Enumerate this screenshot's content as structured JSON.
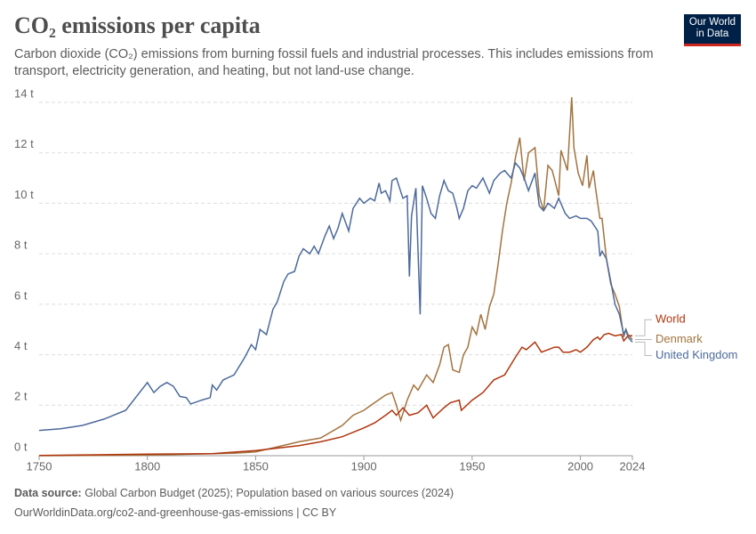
{
  "chart_data": {
    "type": "line",
    "title": "CO₂ emissions per capita",
    "subtitle": "Carbon dioxide (CO₂) emissions from burning fossil fuels and industrial processes. This includes emissions from transport, electricity generation, and heating, but not land-use change.",
    "logo_lines": [
      "Our World",
      "in Data"
    ],
    "source_label": "Data source:",
    "source": "Global Carbon Budget (2025); Population based on various sources (2024)",
    "footer_url": "OurWorldinData.org/co2-and-greenhouse-gas-emissions | CC BY",
    "xlim": [
      1750,
      2024
    ],
    "xticks": [
      1750,
      1800,
      1850,
      1900,
      1950,
      2000,
      2024
    ],
    "ylim": [
      0,
      14
    ],
    "yticks": [
      {
        "value": 0,
        "label": "0 t"
      },
      {
        "value": 2,
        "label": "2 t"
      },
      {
        "value": 4,
        "label": "4 t"
      },
      {
        "value": 6,
        "label": "6 t"
      },
      {
        "value": 8,
        "label": "8 t"
      },
      {
        "value": 10,
        "label": "10 t"
      },
      {
        "value": 12,
        "label": "12 t"
      },
      {
        "value": 14,
        "label": "14 t"
      }
    ],
    "grid": true,
    "series": [
      {
        "name": "Denmark",
        "color": "#a2743f",
        "x": [
          1750,
          1800,
          1840,
          1850,
          1860,
          1870,
          1880,
          1890,
          1895,
          1900,
          1905,
          1910,
          1913,
          1915,
          1917,
          1920,
          1923,
          1925,
          1929,
          1932,
          1935,
          1937,
          1939,
          1941,
          1944,
          1946,
          1948,
          1950,
          1952,
          1954,
          1956,
          1958,
          1960,
          1962,
          1964,
          1966,
          1968,
          1970,
          1972,
          1974,
          1976,
          1979,
          1981,
          1983,
          1985,
          1987,
          1990,
          1991,
          1994,
          1996,
          1997,
          1999,
          2001,
          2003,
          2004,
          2006,
          2007,
          2009,
          2010,
          2012,
          2014,
          2016,
          2018,
          2020,
          2021,
          2022,
          2024
        ],
        "values": [
          0,
          0.02,
          0.1,
          0.15,
          0.35,
          0.55,
          0.7,
          1.2,
          1.6,
          1.8,
          2.1,
          2.4,
          2.5,
          2.0,
          1.4,
          2.2,
          2.8,
          2.6,
          3.2,
          2.9,
          3.6,
          4.3,
          4.4,
          3.4,
          3.3,
          4.0,
          4.3,
          5.1,
          4.8,
          5.6,
          5.0,
          5.9,
          6.4,
          7.6,
          8.9,
          10.0,
          10.8,
          11.8,
          12.6,
          10.9,
          12.0,
          12.2,
          10.3,
          9.7,
          11.5,
          11.3,
          10.3,
          12.1,
          11.3,
          14.2,
          12.2,
          11.2,
          10.7,
          11.9,
          10.6,
          11.3,
          10.6,
          9.4,
          9.4,
          7.8,
          6.8,
          6.4,
          5.9,
          4.7,
          5.0,
          4.8,
          4.6
        ]
      },
      {
        "name": "World",
        "color": "#b0360f",
        "x": [
          1750,
          1800,
          1830,
          1850,
          1860,
          1870,
          1880,
          1890,
          1900,
          1905,
          1910,
          1913,
          1915,
          1918,
          1921,
          1925,
          1929,
          1932,
          1937,
          1940,
          1944,
          1945,
          1950,
          1955,
          1960,
          1965,
          1970,
          1973,
          1975,
          1979,
          1982,
          1985,
          1988,
          1990,
          1992,
          1995,
          1998,
          2000,
          2003,
          2006,
          2008,
          2009,
          2011,
          2013,
          2016,
          2019,
          2020,
          2022,
          2024
        ],
        "values": [
          0.01,
          0.06,
          0.08,
          0.2,
          0.3,
          0.4,
          0.55,
          0.75,
          1.1,
          1.3,
          1.6,
          1.8,
          1.6,
          1.9,
          1.6,
          1.7,
          2.0,
          1.5,
          1.9,
          2.1,
          2.2,
          1.8,
          2.2,
          2.5,
          3.0,
          3.2,
          3.9,
          4.3,
          4.2,
          4.5,
          4.1,
          4.2,
          4.3,
          4.3,
          4.1,
          4.1,
          4.2,
          4.1,
          4.3,
          4.6,
          4.7,
          4.6,
          4.8,
          4.85,
          4.75,
          4.8,
          4.55,
          4.75,
          4.75
        ]
      },
      {
        "name": "United Kingdom",
        "color": "#4c6a9c",
        "x": [
          1750,
          1760,
          1770,
          1780,
          1790,
          1800,
          1803,
          1806,
          1809,
          1812,
          1815,
          1818,
          1820,
          1825,
          1829,
          1830,
          1832,
          1835,
          1840,
          1845,
          1848,
          1850,
          1852,
          1855,
          1858,
          1860,
          1863,
          1865,
          1868,
          1870,
          1872,
          1875,
          1877,
          1879,
          1882,
          1884,
          1886,
          1888,
          1890,
          1893,
          1895,
          1898,
          1900,
          1903,
          1905,
          1907,
          1908,
          1910,
          1912,
          1913,
          1915,
          1918,
          1920,
          1921,
          1922,
          1924,
          1926,
          1927,
          1929,
          1931,
          1933,
          1935,
          1937,
          1939,
          1941,
          1943,
          1944,
          1946,
          1948,
          1950,
          1952,
          1955,
          1958,
          1960,
          1963,
          1965,
          1968,
          1970,
          1972,
          1974,
          1976,
          1979,
          1981,
          1983,
          1985,
          1988,
          1990,
          1993,
          1995,
          1998,
          2000,
          2003,
          2005,
          2008,
          2009,
          2010,
          2012,
          2014,
          2016,
          2018,
          2020,
          2021,
          2022,
          2024
        ],
        "values": [
          1.0,
          1.07,
          1.2,
          1.45,
          1.8,
          2.9,
          2.5,
          2.75,
          2.9,
          2.75,
          2.35,
          2.3,
          2.05,
          2.2,
          2.3,
          2.8,
          2.6,
          3.0,
          3.2,
          3.9,
          4.4,
          4.2,
          5.0,
          4.8,
          5.8,
          6.1,
          6.9,
          7.2,
          7.3,
          7.9,
          8.2,
          8.0,
          8.3,
          8.0,
          8.7,
          9.1,
          8.6,
          9.0,
          9.6,
          8.9,
          9.8,
          10.2,
          10.0,
          10.2,
          10.1,
          10.8,
          10.4,
          10.5,
          10.1,
          10.9,
          11.0,
          10.2,
          10.3,
          7.1,
          9.5,
          10.6,
          5.6,
          10.7,
          10.2,
          9.6,
          9.4,
          10.3,
          10.9,
          10.5,
          10.4,
          9.8,
          9.4,
          9.8,
          10.5,
          10.7,
          10.6,
          11.0,
          10.4,
          10.9,
          11.2,
          11.3,
          11.0,
          11.6,
          11.4,
          11.0,
          10.5,
          11.2,
          9.9,
          9.7,
          10.0,
          9.8,
          10.2,
          9.6,
          9.4,
          9.5,
          9.4,
          9.4,
          9.3,
          8.9,
          7.9,
          8.1,
          7.8,
          6.9,
          6.0,
          5.6,
          4.8,
          5.0,
          4.7,
          4.5
        ]
      }
    ]
  }
}
